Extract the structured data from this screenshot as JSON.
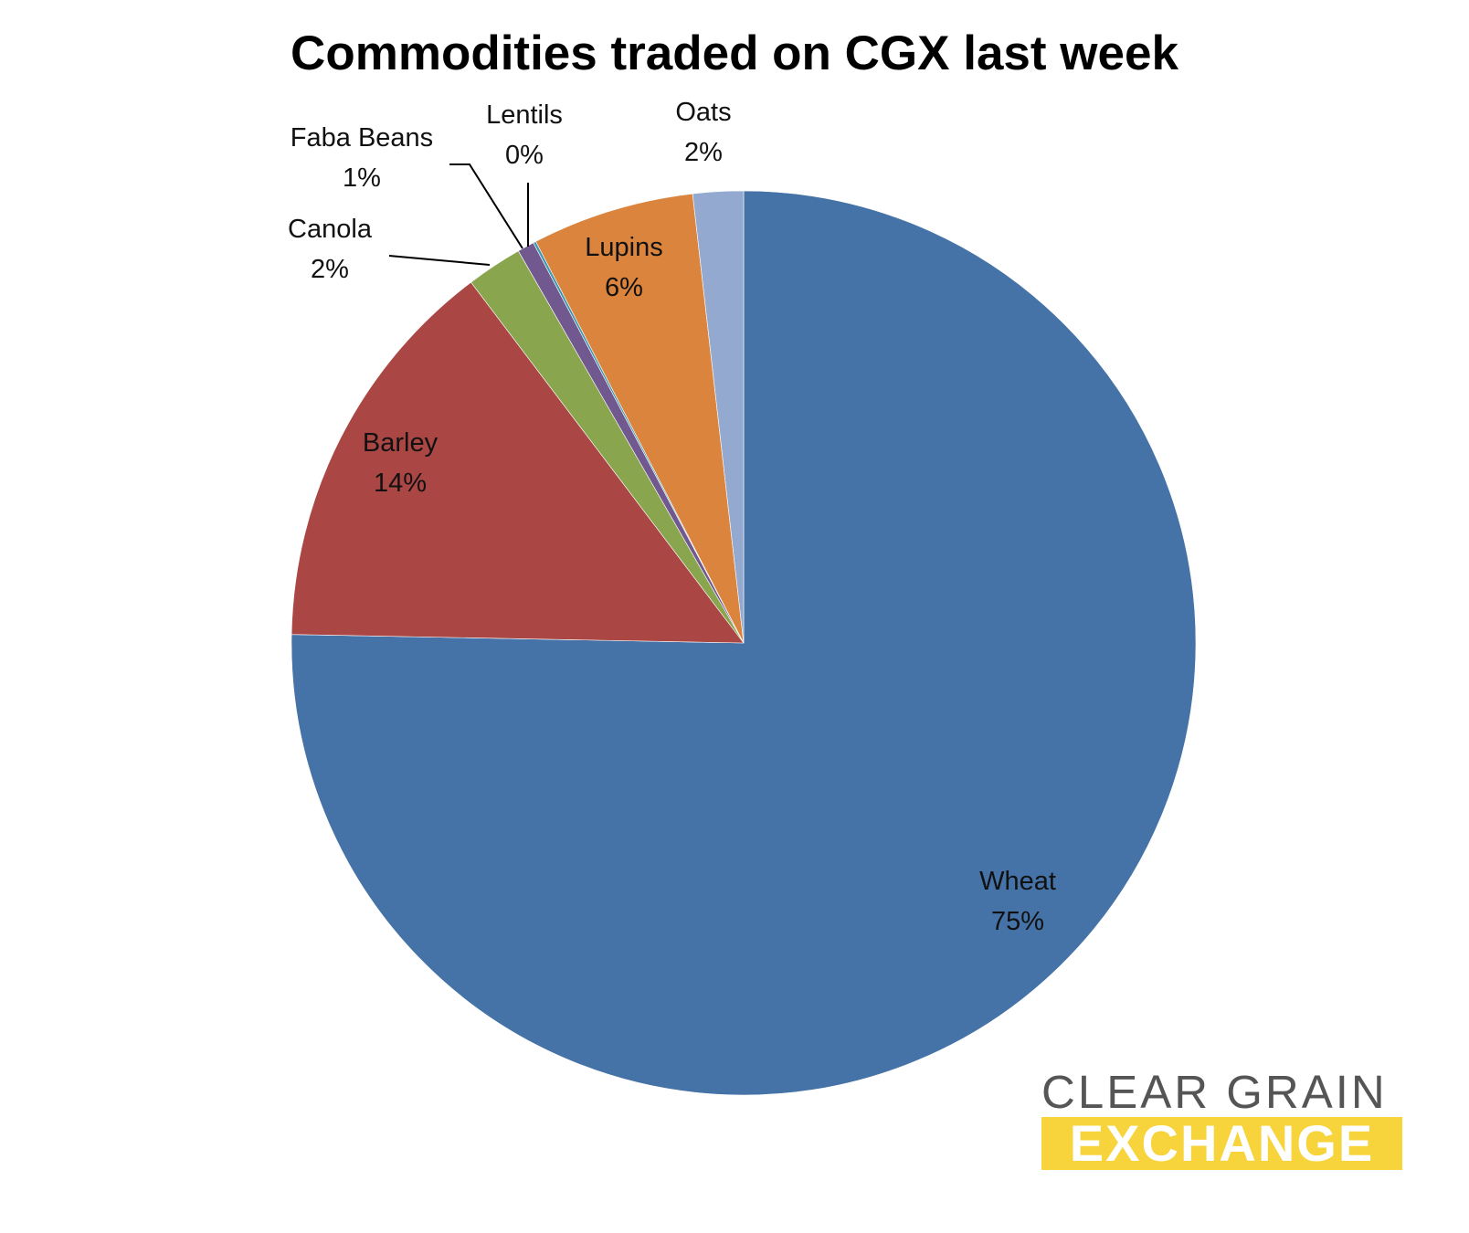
{
  "chart_data": {
    "type": "pie",
    "title": "Commodities traded on CGX last week",
    "start_angle_deg": 0,
    "direction": "clockwise",
    "slices": [
      {
        "name": "Wheat",
        "label": "Wheat",
        "pct_label": "75%",
        "value": 75.3,
        "color": "#4572a7"
      },
      {
        "name": "Barley",
        "label": "Barley",
        "pct_label": "14%",
        "value": 14.4,
        "color": "#aa4643"
      },
      {
        "name": "Canola",
        "label": "Canola",
        "pct_label": "2%",
        "value": 2.0,
        "color": "#89a54e"
      },
      {
        "name": "Faba Beans",
        "label": "Faba Beans",
        "pct_label": "1%",
        "value": 0.6,
        "color": "#71588f"
      },
      {
        "name": "Lentils",
        "label": "Lentils",
        "pct_label": "0%",
        "value": 0.1,
        "color": "#4198af"
      },
      {
        "name": "Lupins",
        "label": "Lupins",
        "pct_label": "6%",
        "value": 5.8,
        "color": "#db843d"
      },
      {
        "name": "Oats",
        "label": "Oats",
        "pct_label": "2%",
        "value": 1.8,
        "color": "#93a9cf"
      }
    ]
  },
  "logo": {
    "line1": "CLEAR GRAIN",
    "line2": "EXCHANGE",
    "text_color": "#555555",
    "accent_color": "#f7d43b"
  }
}
